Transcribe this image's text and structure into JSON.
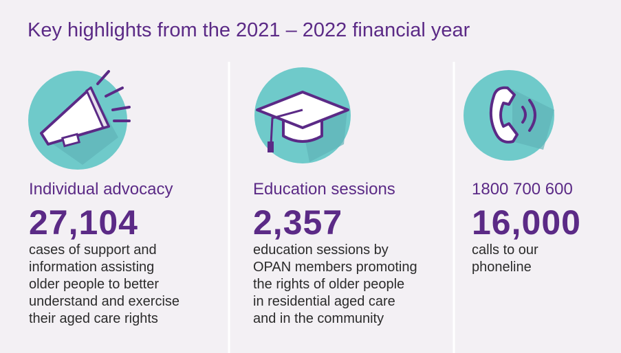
{
  "title": "Key highlights from the 2021 – 2022 financial year",
  "items": [
    {
      "heading": "Individual advocacy",
      "number": "27,104",
      "lines": [
        "cases of support and",
        "information assisting",
        "older people to better",
        "understand and exercise",
        "their aged care rights"
      ]
    },
    {
      "heading": "Education sessions",
      "number": "2,357",
      "lines": [
        "education sessions by",
        "OPAN members promoting",
        "the rights of older people",
        "in residential aged care",
        "and in the community"
      ]
    },
    {
      "heading": "1800 700 600",
      "number": "16,000",
      "lines": [
        "calls to our",
        "phoneline"
      ]
    }
  ]
}
